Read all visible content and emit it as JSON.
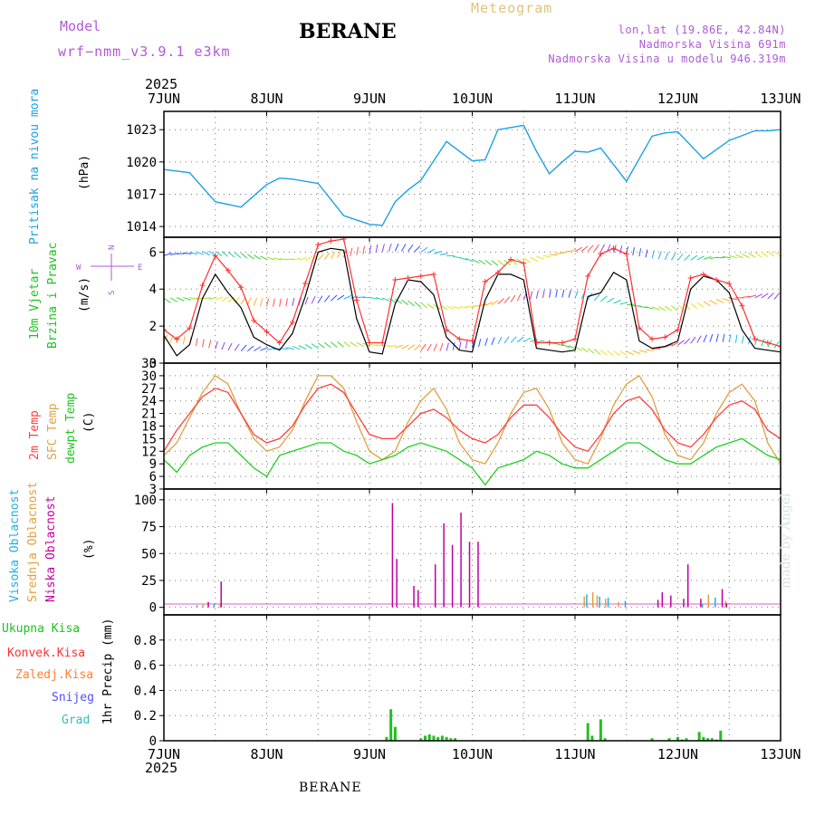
{
  "header": {
    "model_label": "Model",
    "model_run": "wrf−nmm_v3.9.1 e3km",
    "station_title": "BERANE",
    "product": "Meteogram",
    "coords": "lon,lat (19.86E, 42.84N)",
    "altitude": "Nadmorska Visina 691m",
    "model_altitude": "Nadmorska Visina u modelu 946.319m"
  },
  "footer": {
    "station": "BERANE",
    "watermark": "made by Angel"
  },
  "colors": {
    "pressure": "#1ca0e6",
    "wind_speed": "#000000",
    "wind_gust": "#ff3030",
    "temp2m": "#ff4040",
    "sfc_temp": "#e0a040",
    "dewpt": "#20d020",
    "high_cloud": "#20b0e0",
    "mid_cloud": "#e0a040",
    "low_cloud": "#c000a0",
    "total_precip": "#20c020",
    "conv_precip": "#ff3030",
    "frozen": "#ff8030",
    "snow": "#5050ff",
    "graupel": "#30c0c0"
  },
  "chart_data": [
    {
      "type": "line",
      "id": "pressure",
      "title": "Pritisak na nivou mora",
      "ylabel": "(hPa)",
      "xlabel_year": "2025",
      "x_tick_labels": [
        "7JUN",
        "8JUN",
        "9JUN",
        "10JUN",
        "11JUN",
        "12JUN",
        "13JUN"
      ],
      "ylim": [
        1013,
        1024.7
      ],
      "yticks": [
        1014,
        1017,
        1020,
        1023
      ],
      "x_hours": [
        0,
        6,
        12,
        18,
        24,
        27,
        30,
        36,
        42,
        48,
        51,
        54,
        57,
        60,
        66,
        72,
        75,
        78,
        84,
        87,
        90,
        93,
        96,
        99,
        102,
        108,
        114,
        117,
        120,
        126,
        132,
        138,
        141,
        144
      ],
      "series": [
        {
          "name": "MSLP",
          "values": [
            1019.3,
            1019.0,
            1016.3,
            1015.8,
            1017.9,
            1018.5,
            1018.4,
            1018.0,
            1015.0,
            1014.2,
            1014.1,
            1016.3,
            1017.4,
            1018.3,
            1021.9,
            1020.1,
            1020.2,
            1023.0,
            1023.4,
            1021.0,
            1018.9,
            1020.0,
            1021.0,
            1020.9,
            1021.3,
            1018.2,
            1022.4,
            1022.7,
            1022.8,
            1020.3,
            1022.0,
            1022.9,
            1022.9,
            1023.0
          ]
        }
      ]
    },
    {
      "type": "line",
      "id": "wind",
      "title": "10m Vjetar",
      "title2": "Brzina i Pravac",
      "ylabel": "(m/s)",
      "direction_key": [
        "N",
        "W",
        "E",
        "S"
      ],
      "ylim": [
        0,
        6.8
      ],
      "yticks": [
        0,
        2,
        4,
        6
      ],
      "x_hours": [
        0,
        3,
        6,
        9,
        12,
        15,
        18,
        21,
        24,
        27,
        30,
        33,
        36,
        39,
        42,
        45,
        48,
        51,
        54,
        57,
        60,
        63,
        66,
        69,
        72,
        75,
        78,
        81,
        84,
        87,
        90,
        93,
        96,
        99,
        102,
        105,
        108,
        111,
        114,
        117,
        120,
        123,
        126,
        129,
        132,
        135,
        138,
        141,
        144
      ],
      "series": [
        {
          "name": "Speed",
          "values": [
            1.5,
            0.4,
            1.0,
            3.5,
            4.8,
            3.8,
            3.0,
            1.4,
            1.0,
            0.7,
            1.6,
            3.6,
            6.0,
            6.2,
            6.1,
            2.4,
            0.6,
            0.5,
            3.2,
            4.5,
            4.4,
            3.7,
            1.4,
            0.7,
            0.6,
            3.4,
            4.8,
            4.8,
            4.5,
            0.8,
            0.7,
            0.6,
            0.7,
            3.6,
            3.8,
            4.9,
            4.5,
            1.2,
            0.8,
            0.9,
            1.2,
            4.0,
            4.7,
            4.5,
            3.8,
            1.8,
            0.8,
            0.7,
            0.6
          ]
        },
        {
          "name": "Gust",
          "values": [
            1.8,
            1.3,
            1.9,
            4.2,
            5.8,
            5.0,
            4.1,
            2.3,
            1.7,
            1.1,
            2.2,
            4.3,
            6.4,
            6.6,
            6.7,
            3.4,
            1.1,
            1.1,
            4.5,
            4.6,
            4.7,
            4.8,
            1.8,
            1.3,
            1.2,
            4.4,
            4.9,
            5.6,
            5.4,
            1.1,
            1.1,
            1.1,
            1.3,
            4.7,
            5.9,
            6.2,
            5.9,
            1.9,
            1.3,
            1.4,
            1.8,
            4.6,
            4.8,
            4.5,
            4.3,
            3.1,
            1.3,
            1.1,
            0.9
          ]
        }
      ]
    },
    {
      "type": "line",
      "id": "temperature",
      "title": "2m Temp",
      "title2": "SFC Temp",
      "title3": "dewpt Temp",
      "ylabel": "(C)",
      "ylim": [
        3,
        33
      ],
      "yticks": [
        3,
        6,
        9,
        12,
        15,
        18,
        21,
        24,
        27,
        30,
        33
      ],
      "x_hours": [
        0,
        3,
        6,
        9,
        12,
        15,
        18,
        21,
        24,
        27,
        30,
        33,
        36,
        39,
        42,
        45,
        48,
        51,
        54,
        57,
        60,
        63,
        66,
        69,
        72,
        75,
        78,
        81,
        84,
        87,
        90,
        93,
        96,
        99,
        102,
        105,
        108,
        111,
        114,
        117,
        120,
        123,
        126,
        129,
        132,
        135,
        138,
        141,
        144
      ],
      "series": [
        {
          "name": "2m Temp",
          "values": [
            12,
            17,
            21,
            25,
            27,
            26,
            21,
            16,
            14,
            15,
            18,
            23,
            27,
            28,
            26,
            21,
            16,
            15,
            15,
            18,
            21,
            22,
            20,
            17,
            15,
            14,
            16,
            20,
            23,
            23,
            20,
            16,
            13,
            12,
            16,
            21,
            24,
            25,
            22,
            17,
            14,
            13,
            16,
            20,
            23,
            24,
            22,
            17,
            15
          ]
        },
        {
          "name": "SFC Temp",
          "values": [
            11,
            14,
            20,
            26,
            30,
            28,
            21,
            15,
            12,
            13,
            17,
            24,
            30,
            30,
            27,
            19,
            12,
            10,
            12,
            19,
            24,
            27,
            22,
            14,
            10,
            9,
            14,
            21,
            26,
            27,
            22,
            14,
            10,
            9,
            15,
            23,
            28,
            30,
            25,
            16,
            11,
            10,
            14,
            21,
            26,
            28,
            24,
            14,
            9
          ]
        },
        {
          "name": "dewpt Temp",
          "values": [
            10,
            7,
            11,
            13,
            14,
            14,
            11,
            8,
            6,
            11,
            12,
            13,
            14,
            14,
            12,
            11,
            9,
            10,
            11,
            13,
            14,
            13,
            12,
            10,
            8,
            4,
            8,
            9,
            10,
            12,
            11,
            9,
            8,
            8,
            10,
            12,
            14,
            14,
            12,
            10,
            9,
            9,
            11,
            13,
            14,
            15,
            13,
            11,
            10
          ]
        }
      ]
    },
    {
      "type": "bar",
      "id": "clouds",
      "title": "Visoka Oblacnost",
      "title2": "Srednja Oblacnost",
      "title3": "Niska Oblacnost",
      "ylabel": "(%)",
      "ylim": [
        -7,
        110
      ],
      "yticks": [
        0,
        25,
        50,
        75,
        100
      ],
      "series": [
        {
          "name": "Visoka",
          "x_hours": [
            8,
            12,
            99,
            102,
            104,
            108,
            126,
            129
          ],
          "values": [
            2,
            3,
            12,
            10,
            9,
            6,
            3,
            9
          ]
        },
        {
          "name": "Srednja",
          "x_hours": [
            9,
            13,
            98,
            100,
            101,
            103,
            106,
            127,
            131
          ],
          "values": [
            3,
            4,
            10,
            14,
            11,
            8,
            5,
            12,
            6
          ]
        },
        {
          "name": "Niska",
          "x_hours": [
            10,
            13,
            53,
            54,
            58,
            59,
            63,
            65,
            67,
            69,
            71,
            73,
            115,
            116,
            118,
            121,
            122,
            125,
            130,
            131
          ],
          "values": [
            5,
            24,
            97,
            45,
            20,
            16,
            40,
            78,
            58,
            88,
            61,
            61,
            7,
            14,
            11,
            8,
            40,
            8,
            17,
            4
          ]
        }
      ]
    },
    {
      "type": "bar",
      "id": "precip",
      "title": "Ukupna Kisa",
      "title2": "Konvek.Kisa",
      "title3": "Zaledj.Kisa",
      "title4": "Snijeg",
      "title5": "Grad",
      "ylabel": "1hr Precip (mm)",
      "ylim": [
        0,
        1.0
      ],
      "yticks": [
        0,
        0.2,
        0.4,
        0.6,
        0.8
      ],
      "series": [
        {
          "name": "Ukupna Kisa",
          "x_hours": [
            52,
            53,
            54,
            60,
            61,
            62,
            63,
            64,
            65,
            66,
            67,
            68,
            99,
            100,
            102,
            103,
            114,
            118,
            120,
            121,
            122,
            125,
            126,
            127,
            128,
            129,
            130
          ],
          "values": [
            0.03,
            0.25,
            0.11,
            0.02,
            0.04,
            0.05,
            0.04,
            0.03,
            0.04,
            0.03,
            0.02,
            0.02,
            0.14,
            0.04,
            0.17,
            0.02,
            0.02,
            0.02,
            0.03,
            0.01,
            0.02,
            0.07,
            0.03,
            0.02,
            0.02,
            0.01,
            0.08
          ]
        }
      ]
    }
  ]
}
